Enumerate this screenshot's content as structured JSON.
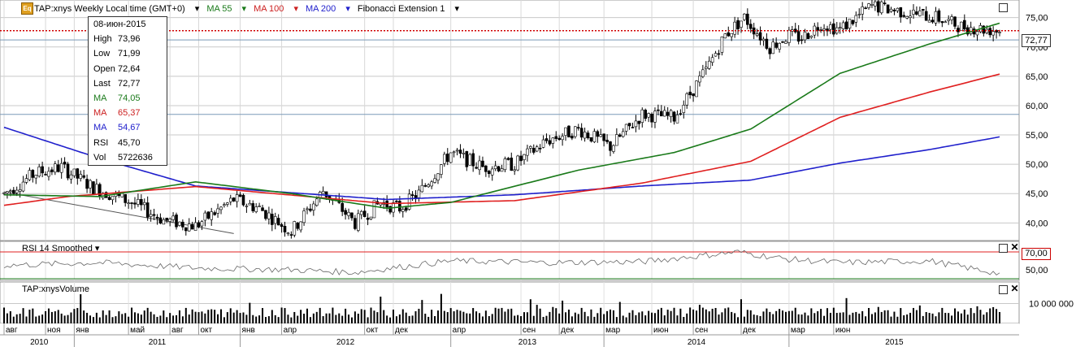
{
  "header": {
    "symbol": "TAP:xnys Weekly Local time (GMT+0)",
    "ma55": "MA 55",
    "ma100": "MA 100",
    "ma200": "MA 200",
    "fib": "Fibonacci Extension 1"
  },
  "tooltip": {
    "date": "08-июн-2015",
    "rows": [
      {
        "k": "High",
        "v": "73,96",
        "color": "#000000"
      },
      {
        "k": "Low",
        "v": "71,99",
        "color": "#000000"
      },
      {
        "k": "Open",
        "v": "72,64",
        "color": "#000000"
      },
      {
        "k": "Last",
        "v": "72,77",
        "color": "#000000"
      },
      {
        "k": "MA",
        "v": "74,05",
        "color": "#1a7a1a"
      },
      {
        "k": "MA",
        "v": "65,37",
        "color": "#cc2020"
      },
      {
        "k": "MA",
        "v": "54,67",
        "color": "#2020cc"
      },
      {
        "k": "RSI",
        "v": "45,70",
        "color": "#000000"
      },
      {
        "k": "Vol",
        "v": "5722636",
        "color": "#000000"
      }
    ]
  },
  "last_price_label": "72,77",
  "rsi_label": "RSI 14 Smoothed",
  "rsi_level_label": "70,00",
  "volume_label": "TAP:xnysVolume",
  "colors": {
    "ma55": "#1a7a1a",
    "ma100": "#e02020",
    "ma200": "#2020cc",
    "grid": "#c8c8c8",
    "accent": "#e0a020"
  },
  "chart_data": [
    {
      "type": "candlestick",
      "title": "TAP:xnys Weekly",
      "ylim": [
        37,
        78
      ],
      "y_ticks": [
        "40,00",
        "45,00",
        "50,00",
        "55,00",
        "60,00",
        "65,00",
        "70,00",
        "75,00"
      ],
      "x_month_ticks": [
        "авг",
        "ноя",
        "янв",
        "май",
        "авг",
        "окт",
        "янв",
        "апр",
        "окт",
        "дек",
        "апр",
        "сен",
        "дек",
        "мар",
        "июн",
        "сен",
        "дек",
        "мар",
        "июн"
      ],
      "x_year_labels": [
        "2010",
        "2011",
        "2012",
        "2013",
        "2014",
        "2015"
      ],
      "price_anchors": [
        [
          0,
          45
        ],
        [
          10,
          48.5
        ],
        [
          18,
          49.5
        ],
        [
          28,
          46
        ],
        [
          40,
          43.5
        ],
        [
          50,
          40.5
        ],
        [
          60,
          39.5
        ],
        [
          72,
          44
        ],
        [
          80,
          42.5
        ],
        [
          90,
          38.5
        ],
        [
          100,
          45.5
        ],
        [
          110,
          40
        ],
        [
          118,
          43.5
        ],
        [
          124,
          42.5
        ],
        [
          130,
          45
        ],
        [
          140,
          52
        ],
        [
          150,
          49.5
        ],
        [
          160,
          50
        ],
        [
          170,
          54
        ],
        [
          180,
          56
        ],
        [
          190,
          53
        ],
        [
          200,
          58.5
        ],
        [
          210,
          58
        ],
        [
          220,
          66
        ],
        [
          226,
          72
        ],
        [
          232,
          75
        ],
        [
          240,
          70
        ],
        [
          246,
          72
        ],
        [
          250,
          71.5
        ],
        [
          256,
          74
        ],
        [
          262,
          73
        ],
        [
          272,
          77
        ],
        [
          282,
          76
        ],
        [
          292,
          75
        ],
        [
          300,
          73.5
        ],
        [
          308,
          73
        ],
        [
          312,
          72.77
        ]
      ],
      "ma55_anchors": [
        [
          0,
          44.8
        ],
        [
          30,
          44.5
        ],
        [
          60,
          47
        ],
        [
          90,
          45
        ],
        [
          120,
          42.5
        ],
        [
          140,
          43.5
        ],
        [
          180,
          49
        ],
        [
          210,
          52
        ],
        [
          234,
          56
        ],
        [
          262,
          65.5
        ],
        [
          290,
          70.5
        ],
        [
          312,
          74.05
        ]
      ],
      "ma100_anchors": [
        [
          0,
          43
        ],
        [
          20,
          44.5
        ],
        [
          60,
          46.2
        ],
        [
          120,
          43.3
        ],
        [
          160,
          43.8
        ],
        [
          200,
          46.8
        ],
        [
          234,
          50.5
        ],
        [
          262,
          58
        ],
        [
          290,
          62.3
        ],
        [
          312,
          65.37
        ]
      ],
      "ma200_anchors": [
        [
          0,
          56.3
        ],
        [
          30,
          51
        ],
        [
          60,
          46.3
        ],
        [
          120,
          44
        ],
        [
          160,
          44.8
        ],
        [
          200,
          46.3
        ],
        [
          234,
          47.3
        ],
        [
          262,
          50.2
        ],
        [
          290,
          52.5
        ],
        [
          312,
          54.67
        ]
      ],
      "fibonacci_line": [
        [
          0,
          45.3
        ],
        [
          72,
          38.2
        ]
      ],
      "horizontal_lines": [
        72.77,
        71.2,
        58.5
      ],
      "last": 72.77
    },
    {
      "type": "line",
      "title": "RSI 14 Smoothed",
      "ylim": [
        40,
        80
      ],
      "y_ticks": [
        "50,00"
      ],
      "level": 70,
      "anchors": [
        [
          0,
          55
        ],
        [
          30,
          58
        ],
        [
          60,
          52
        ],
        [
          90,
          50
        ],
        [
          110,
          47
        ],
        [
          140,
          60
        ],
        [
          170,
          58
        ],
        [
          200,
          59
        ],
        [
          230,
          70
        ],
        [
          245,
          62
        ],
        [
          262,
          58
        ],
        [
          290,
          60
        ],
        [
          312,
          45.7
        ]
      ]
    },
    {
      "type": "bar",
      "title": "TAP:xnysVolume",
      "y_ticks": [
        "10 000 000"
      ],
      "ylim": [
        0,
        20000000
      ],
      "last": 5722636
    }
  ]
}
